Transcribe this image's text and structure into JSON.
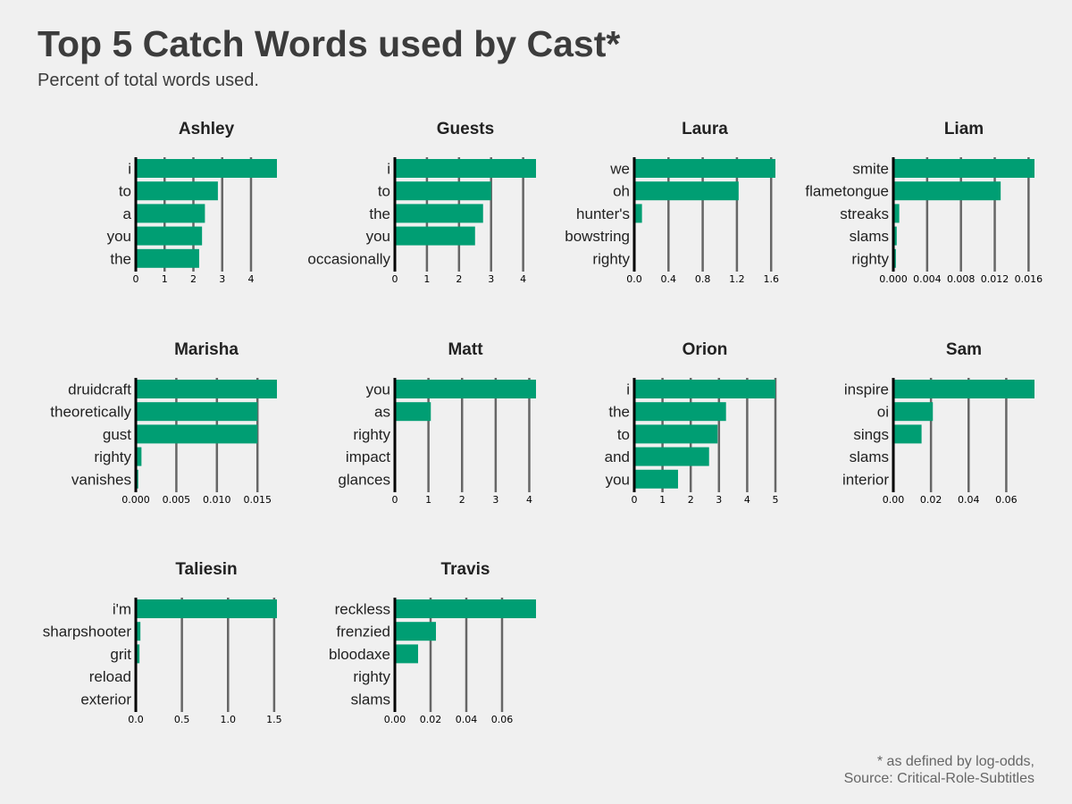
{
  "title": "Top 5 Catch Words used by Cast*",
  "subtitle": "Percent of total words used.",
  "caption": [
    "* as defined by log-odds,",
    "Source: Critical-Role-Subtitles"
  ],
  "colors": {
    "bar": "#009e73",
    "grid": "#666666",
    "axis": "#000000",
    "background": "#f0f0f0"
  },
  "chart_data": [
    {
      "type": "bar",
      "orientation": "horizontal",
      "title": "Ashley",
      "categories": [
        "i",
        "to",
        "a",
        "you",
        "the"
      ],
      "values": [
        4.9,
        2.85,
        2.4,
        2.3,
        2.2
      ],
      "xlim": [
        0,
        4.9
      ],
      "ticks": [
        0,
        1,
        2,
        3,
        4
      ],
      "tick_labels": [
        "0",
        "1",
        "2",
        "3",
        "4"
      ]
    },
    {
      "type": "bar",
      "orientation": "horizontal",
      "title": "Guests",
      "categories": [
        "i",
        "to",
        "the",
        "you",
        "occasionally"
      ],
      "values": [
        4.4,
        3.0,
        2.75,
        2.5,
        0.0
      ],
      "xlim": [
        0,
        4.4
      ],
      "ticks": [
        0,
        1,
        2,
        3,
        4
      ],
      "tick_labels": [
        "0",
        "1",
        "2",
        "3",
        "4"
      ]
    },
    {
      "type": "bar",
      "orientation": "horizontal",
      "title": "Laura",
      "categories": [
        "we",
        "oh",
        "hunter's",
        "bowstring",
        "righty"
      ],
      "values": [
        1.65,
        1.22,
        0.09,
        0.015,
        0.0
      ],
      "xlim": [
        0,
        1.65
      ],
      "ticks": [
        0,
        0.4,
        0.8,
        1.2,
        1.6
      ],
      "tick_labels": [
        "0.0",
        "0.4",
        "0.8",
        "1.2",
        "1.6"
      ]
    },
    {
      "type": "bar",
      "orientation": "horizontal",
      "title": "Liam",
      "categories": [
        "smite",
        "flametongue",
        "streaks",
        "slams",
        "righty"
      ],
      "values": [
        0.0167,
        0.0127,
        0.0007,
        0.0004,
        0.0003
      ],
      "xlim": [
        0,
        0.0167
      ],
      "ticks": [
        0,
        0.004,
        0.008,
        0.012,
        0.016
      ],
      "tick_labels": [
        "0.000",
        "0.004",
        "0.008",
        "0.012",
        "0.016"
      ]
    },
    {
      "type": "bar",
      "orientation": "horizontal",
      "title": "Marisha",
      "categories": [
        "druidcraft",
        "theoretically",
        "gust",
        "righty",
        "vanishes"
      ],
      "values": [
        0.0174,
        0.015,
        0.015,
        0.0007,
        0.0003
      ],
      "xlim": [
        0,
        0.0174
      ],
      "ticks": [
        0,
        0.005,
        0.01,
        0.015
      ],
      "tick_labels": [
        "0.000",
        "0.005",
        "0.010",
        "0.015"
      ]
    },
    {
      "type": "bar",
      "orientation": "horizontal",
      "title": "Matt",
      "categories": [
        "you",
        "as",
        "righty",
        "impact",
        "glances"
      ],
      "values": [
        4.2,
        1.07,
        0.0,
        0.0,
        0.0
      ],
      "xlim": [
        0,
        4.2
      ],
      "ticks": [
        0,
        1,
        2,
        3,
        4
      ],
      "tick_labels": [
        "0",
        "1",
        "2",
        "3",
        "4"
      ]
    },
    {
      "type": "bar",
      "orientation": "horizontal",
      "title": "Orion",
      "categories": [
        "i",
        "the",
        "to",
        "and",
        "you"
      ],
      "values": [
        5.0,
        3.25,
        2.95,
        2.65,
        1.55
      ],
      "xlim": [
        0,
        5.0
      ],
      "ticks": [
        0,
        1,
        2,
        3,
        4,
        5
      ],
      "tick_labels": [
        "0",
        "1",
        "2",
        "3",
        "4",
        "5"
      ]
    },
    {
      "type": "bar",
      "orientation": "horizontal",
      "title": "Sam",
      "categories": [
        "inspire",
        "oi",
        "sings",
        "slams",
        "interior"
      ],
      "values": [
        0.075,
        0.021,
        0.015,
        0.0,
        0.0
      ],
      "xlim": [
        0,
        0.075
      ],
      "ticks": [
        0,
        0.02,
        0.04,
        0.06
      ],
      "tick_labels": [
        "0.00",
        "0.02",
        "0.04",
        "0.06"
      ]
    },
    {
      "type": "bar",
      "orientation": "horizontal",
      "title": "Taliesin",
      "categories": [
        "i'm",
        "sharpshooter",
        "grit",
        "reload",
        "exterior"
      ],
      "values": [
        1.53,
        0.05,
        0.04,
        0.01,
        0.005
      ],
      "xlim": [
        0,
        1.53
      ],
      "ticks": [
        0,
        0.5,
        1.0,
        1.5
      ],
      "tick_labels": [
        "0.0",
        "0.5",
        "1.0",
        "1.5"
      ]
    },
    {
      "type": "bar",
      "orientation": "horizontal",
      "title": "Travis",
      "categories": [
        "reckless",
        "frenzied",
        "bloodaxe",
        "righty",
        "slams"
      ],
      "values": [
        0.079,
        0.023,
        0.013,
        0.0,
        0.0
      ],
      "xlim": [
        0,
        0.079
      ],
      "ticks": [
        0,
        0.02,
        0.04,
        0.06
      ],
      "tick_labels": [
        "0.00",
        "0.02",
        "0.04",
        "0.06"
      ]
    }
  ]
}
